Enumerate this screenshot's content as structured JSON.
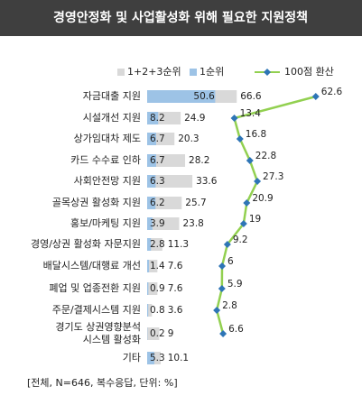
{
  "chart_data": {
    "type": "bar-line",
    "title": "경영안정화 및 사업활성화 위해 필요한 지원정책",
    "categories": [
      "자금대출 지원",
      "시설개선 지원",
      "상가임대차 제도",
      "카드 수수료 인하",
      "사회안전망 지원",
      "골목상권 활성화 지원",
      "홍보/마케팅 지원",
      "경영/상권 활성화 자문지원",
      "배달시스템/대행료 개선",
      "폐업 및 업종전환 지원",
      "주문/결제시스템 지원",
      "경기도 상권영향분석 시스템 활성화",
      "기타"
    ],
    "series": [
      {
        "name": "1+2+3순위",
        "color": "#d9d9d9",
        "values": [
          66.6,
          24.9,
          20.3,
          28.2,
          33.6,
          25.7,
          23.8,
          11.3,
          7.6,
          7.6,
          3.6,
          9.0,
          10.1
        ]
      },
      {
        "name": "1순위",
        "color": "#9dc3e6",
        "values": [
          50.6,
          8.2,
          6.7,
          6.7,
          6.3,
          6.2,
          3.9,
          2.8,
          1.4,
          0.9,
          0.8,
          0.2,
          5.3
        ]
      },
      {
        "name": "100점 환산",
        "color": "#92d050",
        "marker_color": "#2e75b6",
        "axis": "x2",
        "values": [
          62.6,
          13.4,
          16.8,
          22.8,
          27.3,
          20.9,
          19.0,
          9.2,
          6.0,
          5.9,
          2.8,
          6.6,
          null
        ]
      }
    ],
    "xlim": [
      0,
      100
    ],
    "x2lim": [
      0,
      90
    ],
    "note": "[전체, N=646, 복수응답, 단위: %]"
  }
}
